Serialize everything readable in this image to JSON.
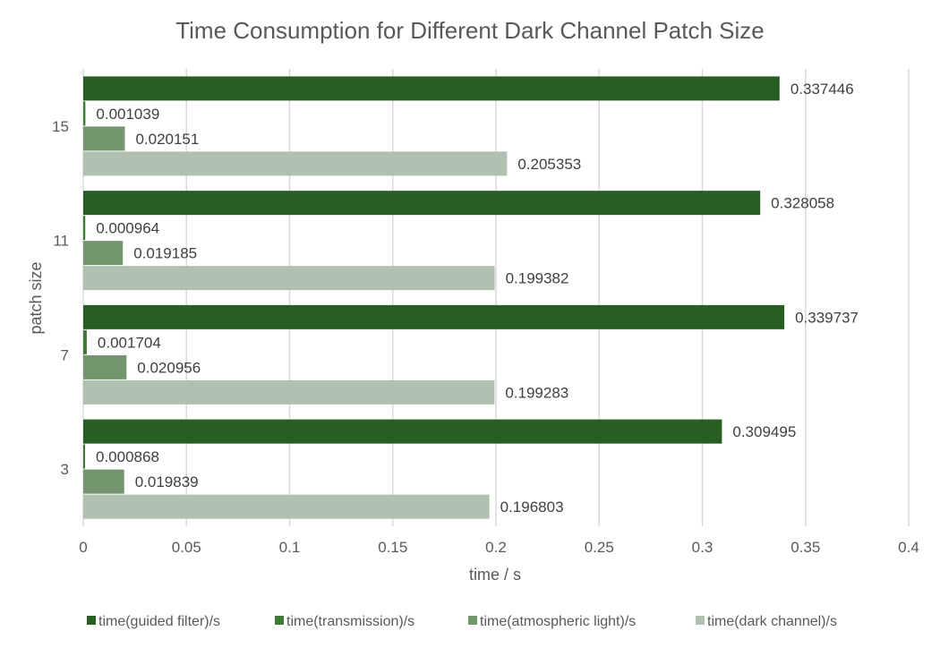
{
  "chart_data": {
    "type": "bar",
    "orientation": "horizontal",
    "title": "Time Consumption for Different Dark Channel Patch Size",
    "xlabel": "time / s",
    "ylabel": "patch size",
    "categories": [
      "3",
      "7",
      "11",
      "15"
    ],
    "xlim": [
      0,
      0.4
    ],
    "xticks": [
      "0",
      "0.05",
      "0.1",
      "0.15",
      "0.2",
      "0.25",
      "0.3",
      "0.35",
      "0.4"
    ],
    "grid": "vertical",
    "legend_position": "bottom",
    "series": [
      {
        "name": "time(guided filter)/s",
        "color": "#275e22",
        "values": [
          0.309495,
          0.339737,
          0.328058,
          0.337446
        ]
      },
      {
        "name": "time(transmission)/s",
        "color": "#3e7a35",
        "values": [
          0.000868,
          0.001704,
          0.000964,
          0.001039
        ]
      },
      {
        "name": "time(atmospheric light)/s",
        "color": "#72956d",
        "values": [
          0.019839,
          0.020956,
          0.019185,
          0.020151
        ]
      },
      {
        "name": "time(dark channel)/s",
        "color": "#b1c1b1",
        "values": [
          0.196803,
          0.199283,
          0.199382,
          0.205353
        ]
      }
    ]
  }
}
